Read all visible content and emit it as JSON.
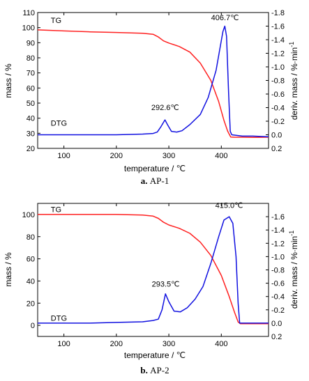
{
  "chart_data": [
    {
      "type": "line",
      "panel_letter": "a.",
      "panel_title": "AP-1",
      "xlabel": "temperature / ℃",
      "ylabel_left": "mass / %",
      "ylabel_right": "deriv. mass / %·min",
      "ylabel_right_superscript": "-1",
      "xlim": [
        50,
        490
      ],
      "ylim_left": [
        20,
        110
      ],
      "ylim_right": [
        0.2,
        -1.8
      ],
      "right_axis_inverted": true,
      "x_ticks": [
        100,
        200,
        300,
        400
      ],
      "y_ticks_left": [
        20,
        30,
        40,
        50,
        60,
        70,
        80,
        90,
        100,
        110
      ],
      "y_ticks_right": [
        0.2,
        0.0,
        -0.2,
        -0.4,
        -0.6,
        -0.8,
        -1.0,
        -1.2,
        -1.4,
        -1.6,
        -1.8
      ],
      "y_tick_labels_right": [
        "0.2",
        "0.0",
        "-0.2",
        "-0.4",
        "-0.6",
        "-0.8",
        "-1.0",
        "-1.2",
        "-1.4",
        "-1.6",
        "-1.8"
      ],
      "grid": false,
      "series": [
        {
          "name": "TG",
          "axis": "left",
          "color": "#ff2020",
          "x": [
            50,
            100,
            150,
            200,
            250,
            270,
            280,
            290,
            300,
            320,
            340,
            360,
            380,
            395,
            405,
            412,
            418,
            425,
            440,
            460,
            490
          ],
          "y": [
            98.5,
            97.8,
            97.2,
            96.8,
            96.3,
            95.6,
            93.8,
            91.2,
            89.8,
            87.5,
            83.8,
            76.5,
            65,
            51,
            38.5,
            31.5,
            27.5,
            27.4,
            27.4,
            27.3,
            27.4
          ]
        },
        {
          "name": "DTG",
          "axis": "right",
          "color": "#1010e0",
          "x": [
            50,
            100,
            150,
            200,
            250,
            270,
            278,
            285,
            292.6,
            298,
            305,
            315,
            325,
            340,
            360,
            375,
            390,
            398,
            403,
            406.7,
            410,
            414,
            417,
            420,
            440,
            460,
            490
          ],
          "y": [
            0.0,
            0.0,
            0.0,
            0.0,
            -0.01,
            -0.02,
            -0.04,
            -0.12,
            -0.22,
            -0.14,
            -0.05,
            -0.04,
            -0.06,
            -0.15,
            -0.3,
            -0.55,
            -0.95,
            -1.3,
            -1.52,
            -1.6,
            -1.45,
            -0.6,
            -0.05,
            0.0,
            0.02,
            0.02,
            0.03
          ]
        }
      ],
      "annotations": [
        {
          "text": "TG",
          "x": 75,
          "y": 103
        },
        {
          "text": "DTG",
          "x": 75,
          "y": 35
        },
        {
          "text": "292.6℃",
          "x": 293,
          "y": 45.5
        },
        {
          "text": "406.7℃",
          "x": 407,
          "y": 105
        }
      ]
    },
    {
      "type": "line",
      "panel_letter": "b.",
      "panel_title": "AP-2",
      "xlabel": "temperature / ℃",
      "ylabel_left": "mass / %",
      "ylabel_right": "deriv. mass / %·min",
      "ylabel_right_superscript": "-1",
      "xlim": [
        50,
        490
      ],
      "ylim_left": [
        -10,
        110
      ],
      "ylim_right": [
        0.2,
        -1.8
      ],
      "right_axis_inverted": true,
      "x_ticks": [
        100,
        200,
        300,
        400
      ],
      "y_ticks_left": [
        0,
        20,
        40,
        60,
        80,
        100
      ],
      "y_ticks_right": [
        0.2,
        0.0,
        -0.2,
        -0.4,
        -0.6,
        -0.8,
        -1.0,
        -1.2,
        -1.4,
        -1.6
      ],
      "y_tick_labels_right": [
        "0.2",
        "0.0",
        "-0.2",
        "-0.4",
        "-0.6",
        "-0.8",
        "-1.0",
        "-1.2",
        "-1.4",
        "-1.6"
      ],
      "grid": false,
      "series": [
        {
          "name": "TG",
          "axis": "left",
          "color": "#ff2020",
          "x": [
            50,
            100,
            150,
            200,
            250,
            270,
            280,
            290,
            300,
            320,
            340,
            360,
            380,
            400,
            415,
            425,
            432,
            436,
            450,
            490
          ],
          "y": [
            100,
            100,
            100,
            100,
            99.5,
            98.5,
            96.5,
            93,
            90.5,
            87.5,
            83,
            75,
            63,
            45,
            26,
            12,
            3,
            1.5,
            1.5,
            1.5
          ]
        },
        {
          "name": "DTG",
          "axis": "right",
          "color": "#1010e0",
          "x": [
            50,
            100,
            150,
            200,
            250,
            270,
            280,
            287,
            293.5,
            300,
            310,
            322,
            335,
            350,
            365,
            380,
            395,
            405,
            415,
            422,
            428,
            432,
            435,
            450,
            490
          ],
          "y": [
            0.0,
            0.0,
            0.0,
            -0.01,
            -0.02,
            -0.04,
            -0.06,
            -0.2,
            -0.44,
            -0.32,
            -0.18,
            -0.17,
            -0.23,
            -0.36,
            -0.55,
            -0.9,
            -1.3,
            -1.55,
            -1.6,
            -1.5,
            -1.0,
            -0.3,
            0.0,
            0.0,
            0.0
          ]
        }
      ],
      "annotations": [
        {
          "text": "TG",
          "x": 75,
          "y": 102
        },
        {
          "text": "DTG",
          "x": 75,
          "y": 4
        },
        {
          "text": "293.5℃",
          "x": 294,
          "y": 35
        },
        {
          "text": "415.0℃",
          "x": 415,
          "y": 106
        }
      ]
    }
  ]
}
